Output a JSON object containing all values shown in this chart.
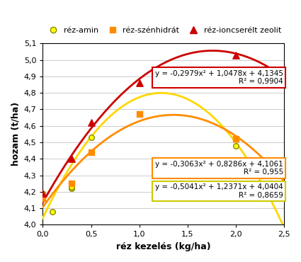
{
  "xlabel": "réz kezelés (kg/ha)",
  "ylabel": "hozam (t/ha)",
  "xlim": [
    0,
    2.5
  ],
  "ylim": [
    4.0,
    5.1
  ],
  "xticks": [
    0.0,
    0.5,
    1.0,
    1.5,
    2.0,
    2.5
  ],
  "yticks": [
    4.0,
    4.1,
    4.2,
    4.3,
    4.4,
    4.5,
    4.6,
    4.7,
    4.8,
    4.9,
    5.0,
    5.1
  ],
  "xtick_labels": [
    "0,0",
    "0,5",
    "1,0",
    "1,5",
    "2,0",
    "2,5"
  ],
  "ytick_labels": [
    "4,0",
    "4,1",
    "4,2",
    "4,3",
    "4,4",
    "4,5",
    "4,6",
    "4,7",
    "4,8",
    "4,9",
    "5,0",
    "5,1"
  ],
  "series": {
    "rez_amin": {
      "curve_color": "#FFD700",
      "face_color": "#FFFF00",
      "edge_color": "#888800",
      "marker": "o",
      "x": [
        0.0,
        0.1,
        0.3,
        0.3,
        0.5,
        2.0
      ],
      "y": [
        4.19,
        4.08,
        4.22,
        4.23,
        4.53,
        4.48
      ],
      "poly": [
        -0.5041,
        1.2371,
        4.0404
      ],
      "label": "réz-amin"
    },
    "rez_szenh": {
      "curve_color": "#FF8C00",
      "face_color": "#FF8C00",
      "edge_color": "#FF8C00",
      "marker": "s",
      "x": [
        0.0,
        0.3,
        0.5,
        1.0,
        2.0
      ],
      "y": [
        4.16,
        4.25,
        4.44,
        4.67,
        4.52
      ],
      "poly": [
        -0.3063,
        0.8286,
        4.1061
      ],
      "label": "réz-szénhidrát"
    },
    "rez_zeolit": {
      "curve_color": "#CC0000",
      "face_color": "#CC0000",
      "edge_color": "#CC0000",
      "marker": "^",
      "x": [
        0.0,
        0.3,
        0.5,
        1.0,
        2.0
      ],
      "y": [
        4.19,
        4.4,
        4.62,
        4.86,
        5.03
      ],
      "poly": [
        -0.2979,
        1.0478,
        4.1345
      ],
      "label": "réz-ioncserélt zeolit"
    }
  },
  "eq_red_text": "y = -0,2979x² + 1,0478x + 4,1345\nR² = 0,9904",
  "eq_red_color": "#CC0000",
  "eq_red_x": 0.57,
  "eq_red_y": 4.94,
  "eq_orange_text": "y = -0,3063x² + 0,8286x + 4,1061\nR² = 0,955",
  "eq_orange_color": "#FF8C00",
  "eq_orange_x": 0.57,
  "eq_orange_y": 4.39,
  "eq_yellow_text": "y = -0,5041x² + 1,2371x + 4,0404\nR² = 0,8659",
  "eq_yellow_color": "#CCCC00",
  "eq_yellow_x": 0.57,
  "eq_yellow_y": 4.25
}
